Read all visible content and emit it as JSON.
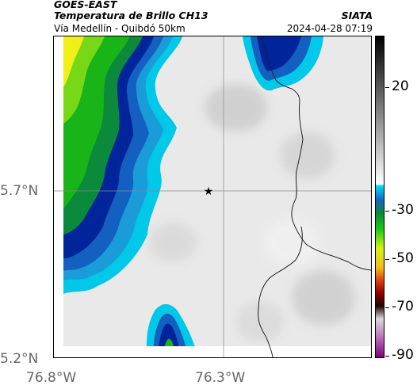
{
  "header": {
    "satellite": "GOES-EAST",
    "product": "Temperatura de Brillo CH13",
    "route": "Vía Medellín - Quibdó 50km",
    "agency": "SIATA",
    "timestamp": "2024-04-28 07:19"
  },
  "map": {
    "latitude_labels": [
      "5.7°N",
      "5.2°N"
    ],
    "longitude_labels": [
      "76.8°W",
      "76.3°W"
    ],
    "marker": "star-marker",
    "colors": {
      "warm_gray": "#e6e6e6",
      "cold_cyan": "#00c8e8",
      "cold_blue": "#1878c8",
      "cold_navy": "#00249a",
      "green": "#18b418",
      "yellow": "#f0f018"
    }
  },
  "colorbar": {
    "labels": [
      "20",
      "-30",
      "-50",
      "-70",
      "-90"
    ]
  }
}
